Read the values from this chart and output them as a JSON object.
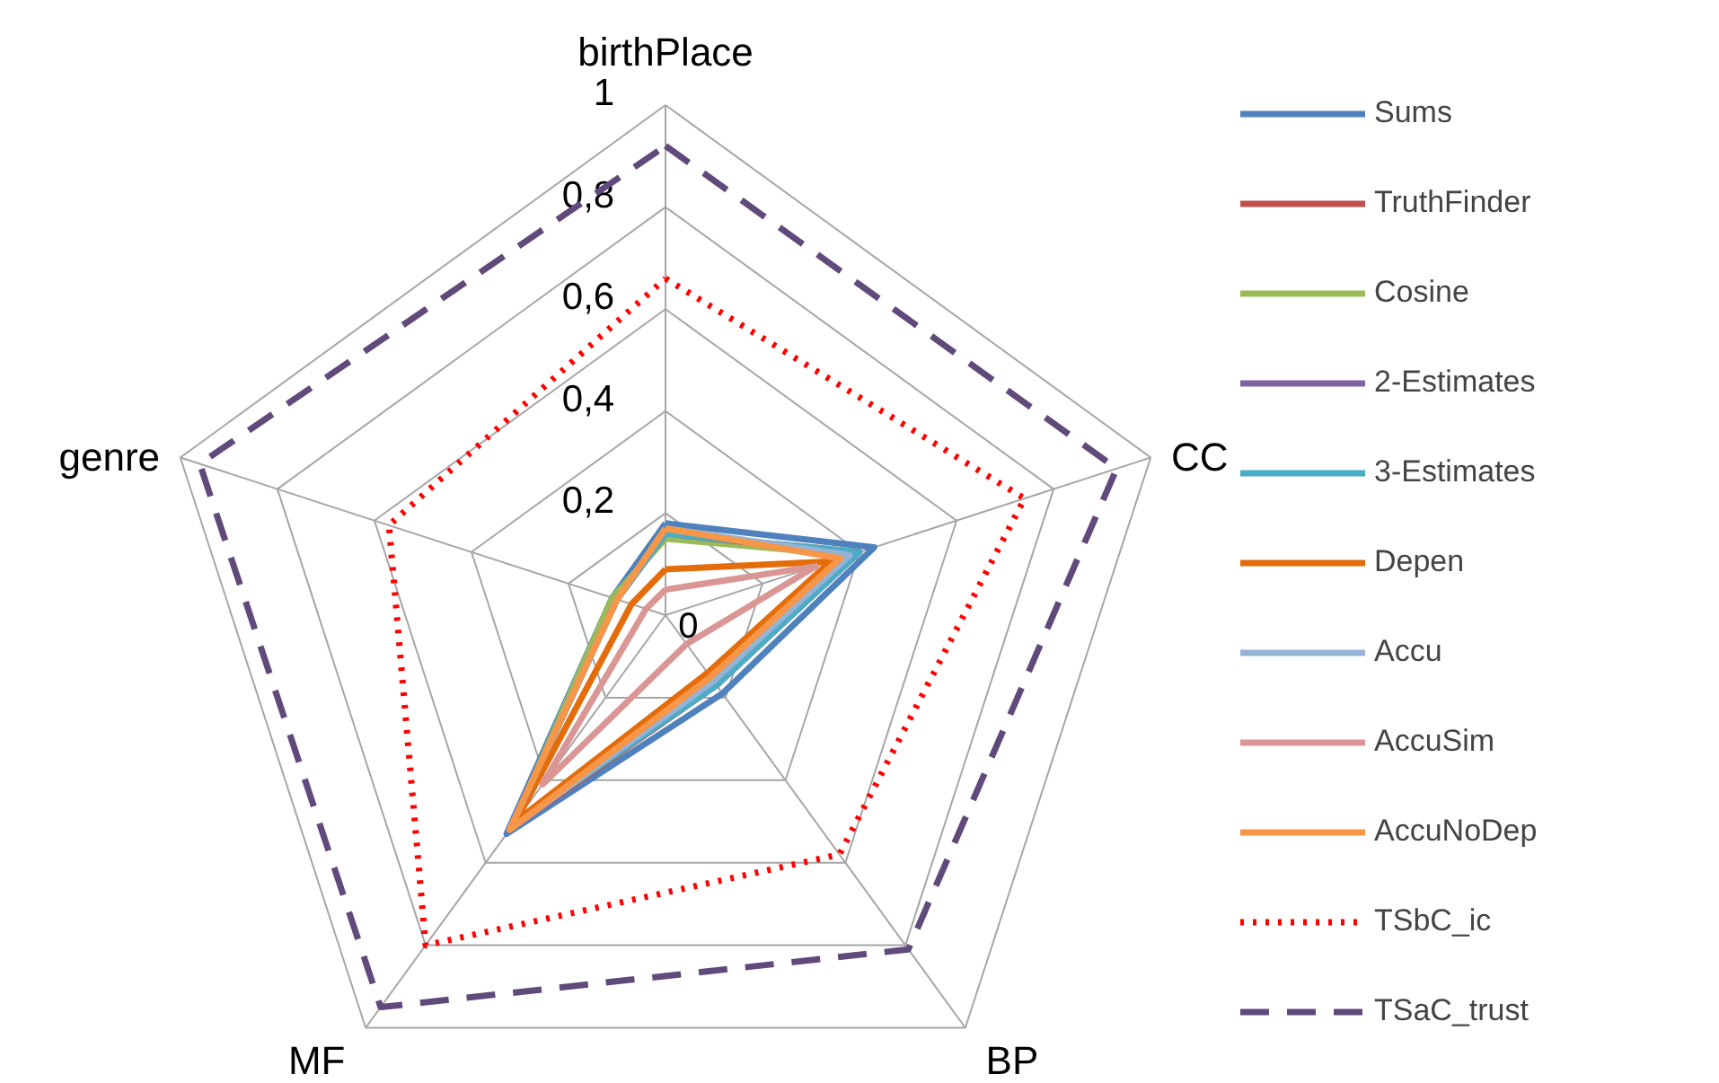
{
  "chart_data": {
    "type": "radar",
    "categories": [
      "birthPlace",
      "CC",
      "BP",
      "MF",
      "genre"
    ],
    "ylim": [
      0,
      1
    ],
    "yticks": [
      {
        "value": 0,
        "label": "0"
      },
      {
        "value": 0.2,
        "label": "0,2"
      },
      {
        "value": 0.4,
        "label": "0,4"
      },
      {
        "value": 0.6,
        "label": "0,6"
      },
      {
        "value": 0.8,
        "label": "0,8"
      },
      {
        "value": 1,
        "label": "1"
      }
    ],
    "grid": true,
    "legend": "right",
    "line_style": "solid",
    "series": [
      {
        "name": "Sums",
        "color": "#4f81bd",
        "values": [
          0.18,
          0.43,
          0.19,
          0.53,
          0.11
        ]
      },
      {
        "name": "TruthFinder",
        "color": "#c0504d",
        "values": [
          0.16,
          0.4,
          0.17,
          0.52,
          0.1
        ]
      },
      {
        "name": "Cosine",
        "color": "#9bbb59",
        "values": [
          0.15,
          0.38,
          0.16,
          0.51,
          0.11
        ]
      },
      {
        "name": "2-Estimates",
        "color": "#8064a2",
        "values": [
          0.16,
          0.39,
          0.16,
          0.52,
          0.1
        ]
      },
      {
        "name": "3-Estimates",
        "color": "#4bacc6",
        "values": [
          0.16,
          0.4,
          0.17,
          0.51,
          0.1
        ]
      },
      {
        "name": "Depen",
        "color": "#e46c0a",
        "values": [
          0.09,
          0.34,
          0.14,
          0.5,
          0.07
        ]
      },
      {
        "name": "Accu",
        "color": "#95b3d7",
        "values": [
          0.17,
          0.38,
          0.16,
          0.52,
          0.1
        ]
      },
      {
        "name": "AccuSim",
        "color": "#d99694",
        "values": [
          0.05,
          0.31,
          0.07,
          0.41,
          0.04
        ]
      },
      {
        "name": "AccuNoDep",
        "color": "#f79646",
        "values": [
          0.17,
          0.36,
          0.15,
          0.52,
          0.1
        ]
      },
      {
        "name": "TSbC_ic",
        "color": "#ff0000",
        "line_style": "dotted",
        "values": [
          0.66,
          0.74,
          0.58,
          0.8,
          0.57
        ]
      },
      {
        "name": "TSaC_trust",
        "color": "#604a7b",
        "line_style": "dashed",
        "values": [
          0.92,
          0.93,
          0.81,
          0.95,
          0.96
        ]
      }
    ]
  }
}
